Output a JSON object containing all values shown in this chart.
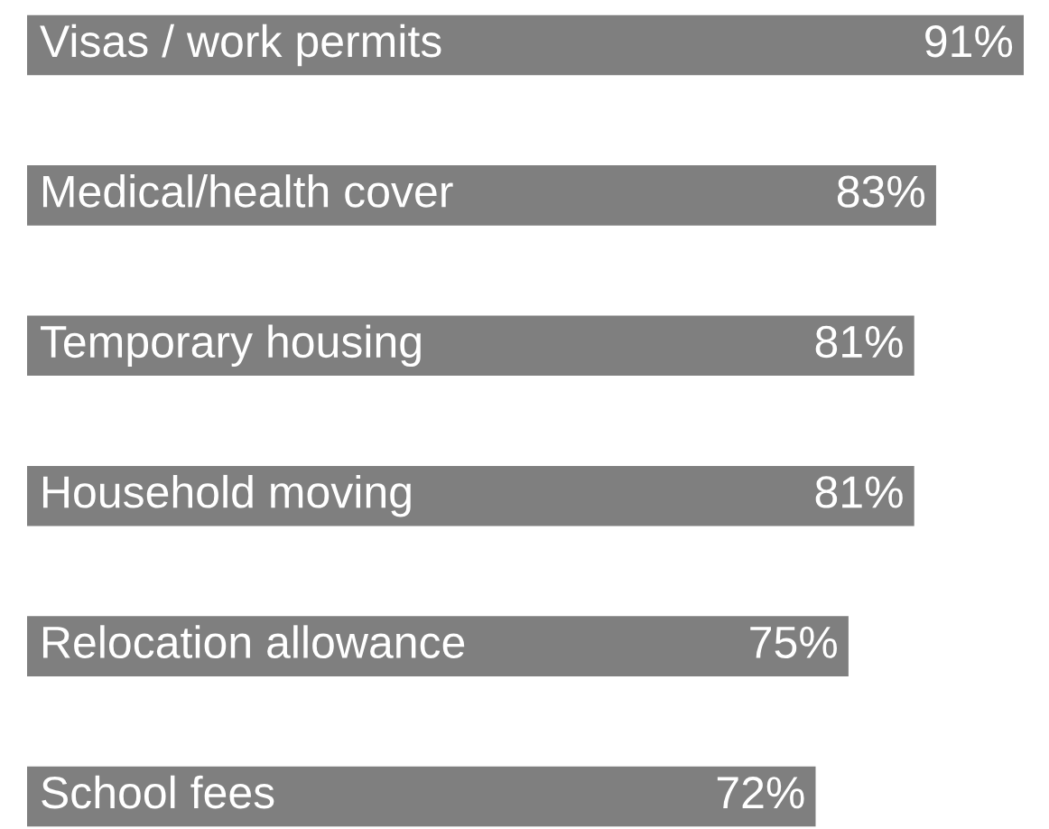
{
  "chart_data": {
    "type": "bar",
    "orientation": "horizontal",
    "categories": [
      "Visas / work permits",
      "Medical/health cover",
      "Temporary housing",
      "Household moving",
      "Relocation allowance",
      "School fees"
    ],
    "values": [
      91,
      83,
      81,
      81,
      75,
      72
    ],
    "value_labels": [
      "91%",
      "83%",
      "81%",
      "81%",
      "75%",
      "72%"
    ],
    "color": "#7f7f7f"
  }
}
